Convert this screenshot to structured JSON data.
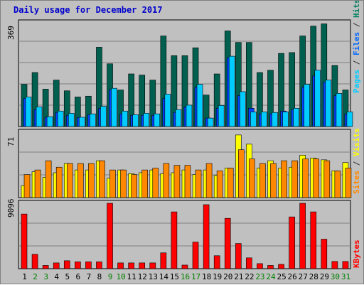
{
  "title": "Daily usage for December 2017",
  "chart_data": [
    {
      "type": "bar",
      "name": "pages-files-hits",
      "y_max_label": "369",
      "ylim": [
        0,
        369
      ],
      "x": [
        1,
        2,
        3,
        4,
        5,
        6,
        7,
        8,
        9,
        10,
        11,
        12,
        13,
        14,
        15,
        16,
        17,
        18,
        19,
        20,
        21,
        22,
        23,
        24,
        25,
        26,
        27,
        28,
        29,
        30,
        31
      ],
      "weekend_days": [
        2,
        3,
        9,
        10,
        16,
        17,
        23,
        24,
        30,
        31
      ],
      "right_label_parts": [
        "Pages",
        " / ",
        "Files",
        " / ",
        "Hits"
      ],
      "right_label_colors": [
        "#00ccff",
        "#333333",
        "#0066ff",
        "#333333",
        "#008060"
      ],
      "series": [
        {
          "name": "Hits",
          "color": "#006050",
          "values": [
            150,
            192,
            133,
            165,
            127,
            105,
            108,
            282,
            223,
            130,
            187,
            183,
            165,
            322,
            252,
            252,
            280,
            112,
            187,
            340,
            299,
            299,
            192,
            200,
            260,
            263,
            322,
            357,
            365,
            217,
            130
          ]
        },
        {
          "name": "Files",
          "color": "#0044ff",
          "values": [
            100,
            60,
            33,
            50,
            40,
            32,
            42,
            65,
            131,
            45,
            40,
            40,
            40,
            100,
            50,
            70,
            140,
            30,
            65,
            245,
            110,
            65,
            45,
            45,
            55,
            60,
            140,
            180,
            158,
            110,
            45
          ]
        },
        {
          "name": "Pages",
          "color": "#00ccff",
          "values": [
            105,
            70,
            35,
            55,
            47,
            33,
            45,
            72,
            136,
            55,
            42,
            47,
            45,
            115,
            60,
            76,
            150,
            30,
            75,
            250,
            124,
            52,
            52,
            50,
            52,
            65,
            150,
            200,
            165,
            118,
            52
          ]
        }
      ]
    },
    {
      "type": "bar",
      "name": "sites-visits",
      "y_max_label": "71",
      "ylim": [
        0,
        71
      ],
      "right_label_parts": [
        "Sites",
        " / ",
        "Visits"
      ],
      "right_label_colors": [
        "#ff8800",
        "#333333",
        "#ffff00"
      ],
      "series": [
        {
          "name": "Visits",
          "color": "#ffff00",
          "values": [
            13,
            28,
            22,
            27,
            37,
            30,
            30,
            40,
            21,
            30,
            26,
            27,
            30,
            26,
            27,
            30,
            25,
            30,
            24,
            32,
            68,
            58,
            32,
            40,
            32,
            33,
            46,
            43,
            41,
            29,
            38
          ]
        },
        {
          "name": "Sites",
          "color": "#ff8800",
          "values": [
            25,
            30,
            40,
            33,
            37,
            37,
            37,
            40,
            30,
            30,
            25,
            30,
            32,
            37,
            35,
            35,
            30,
            37,
            29,
            32,
            52,
            42,
            37,
            37,
            40,
            40,
            42,
            42,
            40,
            29,
            32
          ]
        }
      ]
    },
    {
      "type": "bar",
      "name": "kbytes",
      "y_max_label": "9096",
      "ylim": [
        0,
        9096
      ],
      "right_label_parts": [
        "KBytes"
      ],
      "right_label_colors": [
        "#ff0000"
      ],
      "series": [
        {
          "name": "KBytes",
          "color": "#ff0000",
          "values": [
            7600,
            2000,
            450,
            800,
            1100,
            950,
            950,
            950,
            9096,
            800,
            800,
            800,
            800,
            2200,
            7900,
            500,
            3700,
            8900,
            1800,
            7000,
            3500,
            1500,
            700,
            450,
            600,
            7200,
            9096,
            7900,
            4100,
            1000,
            1000
          ]
        }
      ]
    }
  ]
}
